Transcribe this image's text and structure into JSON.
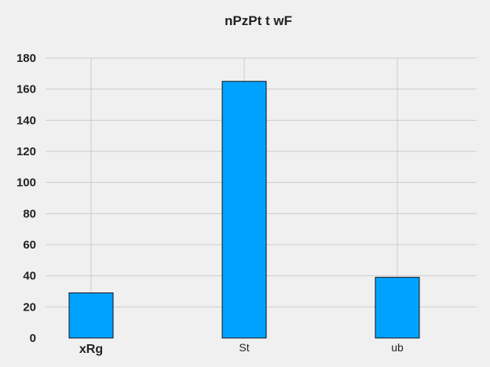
{
  "chart_data": {
    "type": "bar",
    "title": "nPzPt t wF",
    "categories": [
      "xRg",
      "St",
      "ub"
    ],
    "values": [
      29,
      165,
      39
    ],
    "xlabel": "",
    "ylabel": "",
    "ylim": [
      0,
      180
    ],
    "yticks": [
      0,
      20,
      40,
      60,
      80,
      100,
      120,
      140,
      160,
      180
    ],
    "grid": true,
    "bar_color": "#00a2ff",
    "edge_color": "#111111",
    "background": "#f0f0f0",
    "bold_categories": [
      "xRg"
    ]
  }
}
